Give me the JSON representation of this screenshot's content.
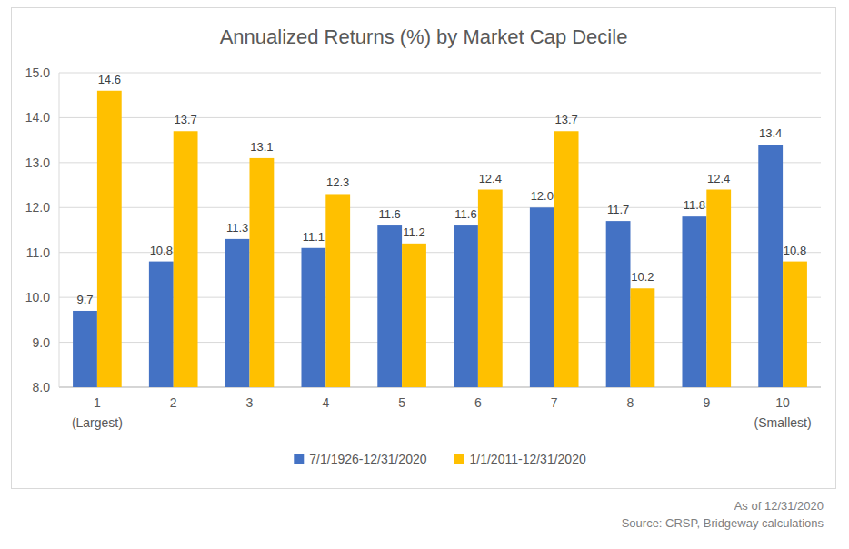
{
  "chart_data": {
    "type": "bar",
    "title": "Annualized Returns (%) by Market Cap Decile",
    "categories": [
      "1\n(Largest)",
      "2",
      "3",
      "4",
      "5",
      "6",
      "7",
      "8",
      "9",
      "10\n(Smallest)"
    ],
    "series": [
      {
        "name": "7/1/1926-12/31/2020",
        "color": "#4472c4",
        "values": [
          9.7,
          10.8,
          11.3,
          11.1,
          11.6,
          11.6,
          12.0,
          11.7,
          11.8,
          13.4
        ],
        "value_labels": [
          "9.7",
          "10.8",
          "11.3",
          "11.1",
          "11.6",
          "11.6",
          "12.0",
          "11.7",
          "11.8",
          "13.4"
        ]
      },
      {
        "name": "1/1/2011-12/31/2020",
        "color": "#ffc000",
        "values": [
          14.6,
          13.7,
          13.1,
          12.3,
          11.2,
          12.4,
          13.7,
          10.2,
          12.4,
          10.8
        ],
        "value_labels": [
          "14.6",
          "13.7",
          "13.1",
          "12.3",
          "11.2",
          "12.4",
          "13.7",
          "10.2",
          "12.4",
          "10.8"
        ]
      }
    ],
    "ylim": [
      8,
      15
    ],
    "yticks": [
      {
        "value": 8,
        "label": "8.0"
      },
      {
        "value": 9,
        "label": "9.0"
      },
      {
        "value": 10,
        "label": "10.0"
      },
      {
        "value": 11,
        "label": "11.0"
      },
      {
        "value": 12,
        "label": "12.0"
      },
      {
        "value": 13,
        "label": "13.0"
      },
      {
        "value": 14,
        "label": "14.0"
      },
      {
        "value": 15,
        "label": "15.0"
      }
    ],
    "grid": true,
    "data_labels": true,
    "legend": "bottom",
    "annotations": [
      "As of 12/31/2020",
      "Source: CRSP, Bridgeway calculations"
    ]
  }
}
